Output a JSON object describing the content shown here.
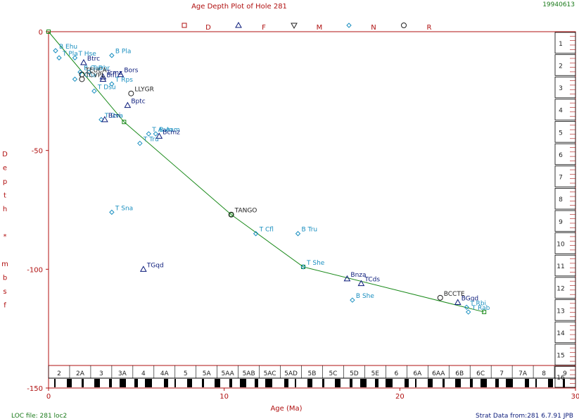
{
  "header": {
    "title": "Age Depth Plot of Hole 281",
    "date_stamp": "19940613",
    "legend_letters": [
      "D",
      "F",
      "M",
      "N",
      "R"
    ]
  },
  "footer": {
    "loc_file": "LOC file: 281 loc2",
    "strat_data": "Strat Data from:281  6.7.91  JPB"
  },
  "colors": {
    "axis": "#b01010",
    "line": "#1a8a1a",
    "cyan": "#1a8fc0",
    "navy": "#0a1a7a",
    "black": "#222222"
  },
  "chart_data": {
    "type": "scatter",
    "title": "Age Depth Plot of Hole 281",
    "xlabel": "Age (Ma)",
    "ylabel": "Depth * mbsf",
    "xlim": [
      0,
      30
    ],
    "ylim": [
      0,
      -150
    ],
    "x_ticks": [
      0,
      10,
      20,
      30
    ],
    "y_ticks": [
      0,
      -50,
      -100,
      -150
    ],
    "loc_line": [
      {
        "x": 0,
        "y": 0
      },
      {
        "x": 4.3,
        "y": -38
      },
      {
        "x": 10.4,
        "y": -77
      },
      {
        "x": 14.5,
        "y": -99
      },
      {
        "x": 24.8,
        "y": -118
      }
    ],
    "events": [
      {
        "label": "B Ehu",
        "x": 0.4,
        "y": -8,
        "marker": "diamond",
        "color": "cyan"
      },
      {
        "label": "T Hse",
        "x": 1.5,
        "y": -11,
        "marker": "diamond",
        "color": "cyan"
      },
      {
        "label": "B Pla",
        "x": 3.6,
        "y": -10,
        "marker": "diamond",
        "color": "cyan"
      },
      {
        "label": "T Pla",
        "x": 0.6,
        "y": -11,
        "marker": "diamond",
        "color": "cyan"
      },
      {
        "label": "Btrc",
        "x": 2.0,
        "y": -13,
        "marker": "triangle",
        "color": "navy"
      },
      {
        "label": "B Goo",
        "x": 1.8,
        "y": -17,
        "marker": "diamond",
        "color": "cyan"
      },
      {
        "label": "T Dbr",
        "x": 2.3,
        "y": -17,
        "marker": "diamond",
        "color": "cyan"
      },
      {
        "label": "Tcmz",
        "x": 3.1,
        "y": -19,
        "marker": "triangle",
        "color": "navy"
      },
      {
        "label": "Bifl",
        "x": 3.1,
        "y": -20,
        "marker": "triangle",
        "color": "navy"
      },
      {
        "label": "Bors",
        "x": 4.1,
        "y": -18,
        "marker": "triangle",
        "color": "navy"
      },
      {
        "label": "T Cna",
        "x": 1.5,
        "y": -20,
        "marker": "diamond",
        "color": "cyan"
      },
      {
        "label": "TEUCA",
        "x": 1.9,
        "y": -18,
        "marker": "circle",
        "color": "black"
      },
      {
        "label": "TCVPL",
        "x": 1.9,
        "y": -20,
        "marker": "circle",
        "color": "black"
      },
      {
        "label": "T Rps",
        "x": 3.6,
        "y": -22,
        "marker": "diamond",
        "color": "cyan"
      },
      {
        "label": "T Dsu",
        "x": 2.6,
        "y": -25,
        "marker": "diamond",
        "color": "cyan"
      },
      {
        "label": "LLYGR",
        "x": 4.7,
        "y": -26,
        "marker": "circle",
        "color": "black"
      },
      {
        "label": "Bptc",
        "x": 4.5,
        "y": -31,
        "marker": "triangle",
        "color": "navy"
      },
      {
        "label": "T Dva",
        "x": 3.0,
        "y": -37,
        "marker": "diamond",
        "color": "cyan"
      },
      {
        "label": "Bcri",
        "x": 3.2,
        "y": -37,
        "marker": "triangle",
        "color": "navy"
      },
      {
        "label": "T Aam",
        "x": 5.7,
        "y": -43,
        "marker": "diamond",
        "color": "cyan"
      },
      {
        "label": "B Aam",
        "x": 6.1,
        "y": -43,
        "marker": "diamond",
        "color": "cyan"
      },
      {
        "label": "Bcmz",
        "x": 6.3,
        "y": -44,
        "marker": "triangle",
        "color": "navy"
      },
      {
        "label": "T Tru",
        "x": 5.2,
        "y": -47,
        "marker": "diamond",
        "color": "cyan"
      },
      {
        "label": "T Sna",
        "x": 3.6,
        "y": -76,
        "marker": "diamond",
        "color": "cyan"
      },
      {
        "label": "TANGO",
        "x": 10.4,
        "y": -77,
        "marker": "circle",
        "color": "black"
      },
      {
        "label": "T Cfl",
        "x": 11.8,
        "y": -85,
        "marker": "diamond",
        "color": "cyan"
      },
      {
        "label": "B Tru",
        "x": 14.2,
        "y": -85,
        "marker": "diamond",
        "color": "cyan"
      },
      {
        "label": "TGqd",
        "x": 5.4,
        "y": -100,
        "marker": "triangle",
        "color": "navy"
      },
      {
        "label": "T She",
        "x": 14.5,
        "y": -99,
        "marker": "diamond",
        "color": "cyan"
      },
      {
        "label": "Bnza",
        "x": 17.0,
        "y": -104,
        "marker": "triangle",
        "color": "navy"
      },
      {
        "label": "TCds",
        "x": 17.8,
        "y": -106,
        "marker": "triangle",
        "color": "navy"
      },
      {
        "label": "B She",
        "x": 17.3,
        "y": -113,
        "marker": "diamond",
        "color": "cyan"
      },
      {
        "label": "BCCTE",
        "x": 22.3,
        "y": -112,
        "marker": "circle",
        "color": "black"
      },
      {
        "label": "BGqd",
        "x": 23.3,
        "y": -114,
        "marker": "triangle",
        "color": "navy"
      },
      {
        "label": "T Rbi",
        "x": 23.8,
        "y": -116,
        "marker": "diamond",
        "color": "cyan"
      },
      {
        "label": "T Rab",
        "x": 23.9,
        "y": -118,
        "marker": "diamond",
        "color": "cyan"
      }
    ],
    "epochs": [
      "2",
      "2A",
      "3",
      "3A",
      "4",
      "4A",
      "5",
      "5A",
      "5AA",
      "5AB",
      "5AC",
      "5AD",
      "5B",
      "5C",
      "5D",
      "5E",
      "6",
      "6A",
      "6AA",
      "6B",
      "6C",
      "7",
      "7A",
      "8",
      "9"
    ],
    "core_labels": [
      "1",
      "2",
      "3",
      "4",
      "5",
      "6",
      "7",
      "8",
      "9",
      "10",
      "11",
      "12",
      "13",
      "14",
      "15",
      "16"
    ]
  }
}
